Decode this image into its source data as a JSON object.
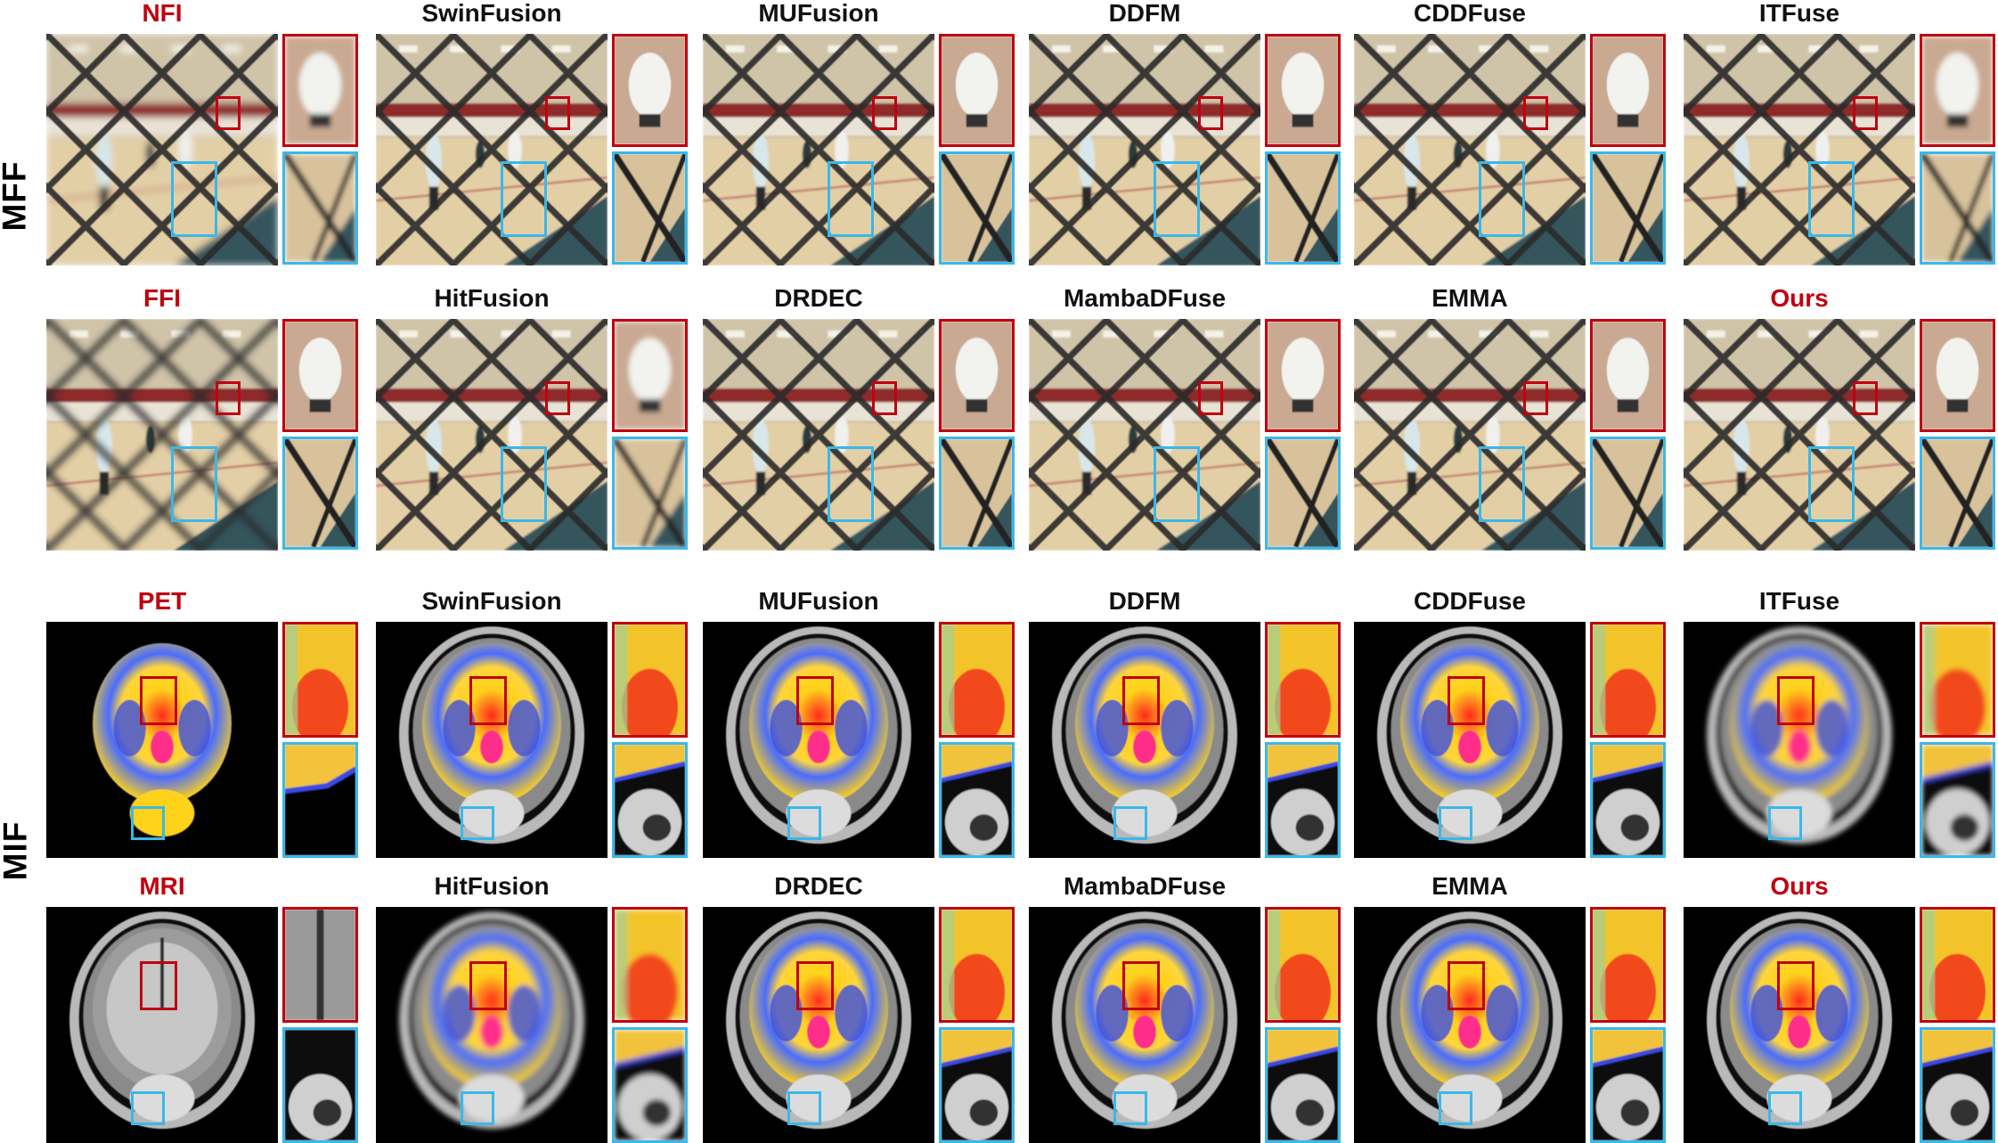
{
  "figure": {
    "sections": [
      {
        "label": "MFF"
      },
      {
        "label": "MIF"
      }
    ],
    "rows": [
      {
        "section": "MFF",
        "methods": [
          {
            "name": "NFI",
            "highlight": true
          },
          {
            "name": "SwinFusion",
            "highlight": false
          },
          {
            "name": "MUFusion",
            "highlight": false
          },
          {
            "name": "DDFM",
            "highlight": false
          },
          {
            "name": "CDDFuse",
            "highlight": false
          },
          {
            "name": "ITFuse",
            "highlight": false
          }
        ]
      },
      {
        "section": "MFF",
        "methods": [
          {
            "name": "FFI",
            "highlight": true
          },
          {
            "name": "HitFusion",
            "highlight": false
          },
          {
            "name": "DRDEC",
            "highlight": false
          },
          {
            "name": "MambaDFuse",
            "highlight": false
          },
          {
            "name": "EMMA",
            "highlight": false
          },
          {
            "name": "Ours",
            "highlight": true
          }
        ]
      },
      {
        "section": "MIF",
        "methods": [
          {
            "name": "PET",
            "highlight": true
          },
          {
            "name": "SwinFusion",
            "highlight": false
          },
          {
            "name": "MUFusion",
            "highlight": false
          },
          {
            "name": "DDFM",
            "highlight": false
          },
          {
            "name": "CDDFuse",
            "highlight": false
          },
          {
            "name": "ITFuse",
            "highlight": false
          }
        ]
      },
      {
        "section": "MIF",
        "methods": [
          {
            "name": "MRI",
            "highlight": true
          },
          {
            "name": "HitFusion",
            "highlight": false
          },
          {
            "name": "DRDEC",
            "highlight": false
          },
          {
            "name": "MambaDFuse",
            "highlight": false
          },
          {
            "name": "EMMA",
            "highlight": false
          },
          {
            "name": "Ours",
            "highlight": true
          }
        ]
      }
    ],
    "colors": {
      "highlight_text": "#c0000f",
      "roi_red": "#c0000f",
      "roi_blue": "#3ab8ea"
    },
    "icons": {
      "scene": "volleyball-gym-through-chain-fence",
      "brain": "coronal-brain-scan"
    }
  }
}
